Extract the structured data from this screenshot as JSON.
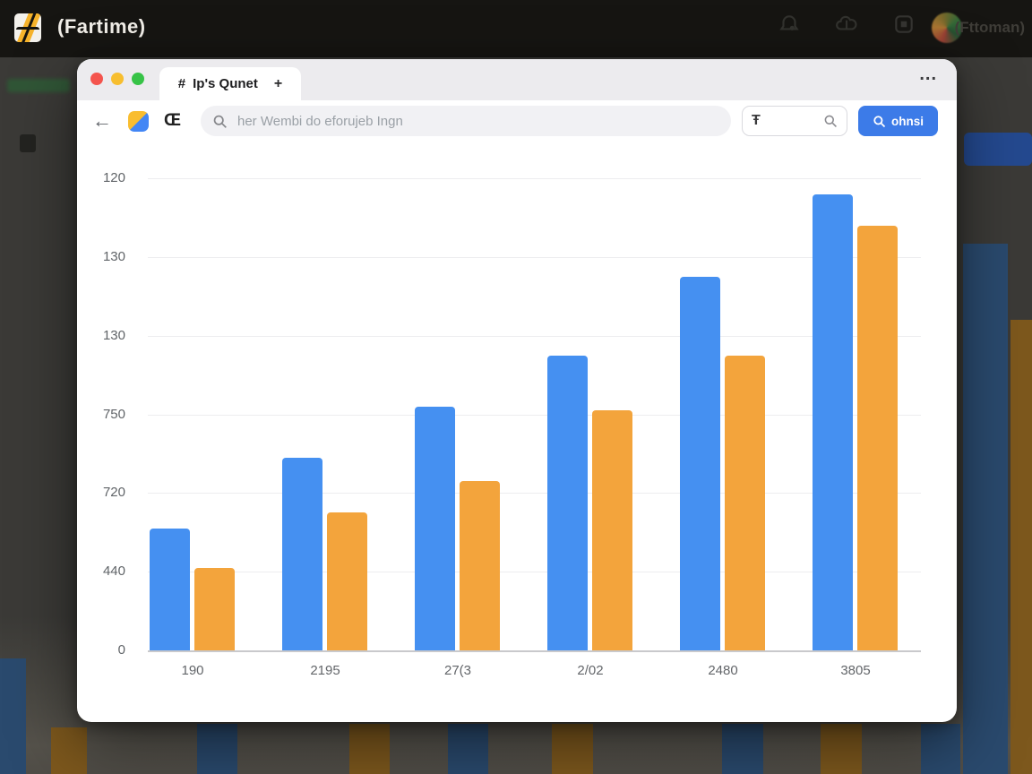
{
  "background": {
    "app_title": "(Fartime)",
    "user_name": "(Fttoman)",
    "topbar_color": "#161512",
    "content_color": "#3b3a37",
    "dim_blue": "#2a4a6e",
    "dim_orange": "#7d581d"
  },
  "window": {
    "tab": {
      "favicon_glyph": "#",
      "title": "Ip's Qunet",
      "new_tab_glyph": "+"
    },
    "menu_glyph": "...",
    "toolbar": {
      "back_glyph": "←",
      "reader_glyph": "Œ",
      "search_placeholder": "her Wembi do eforujeb Ingn",
      "find_glyph": "Ŧ",
      "search_button_label": "ohnsi",
      "accent_color": "#3C7BE8"
    }
  },
  "chart_data": {
    "type": "bar",
    "title": "",
    "xlabel": "",
    "ylabel": "",
    "categories": [
      "190",
      "2195",
      "27(3",
      "2/02",
      "2480",
      "3805"
    ],
    "series": [
      {
        "name": "blue",
        "color": "#4590F1",
        "values": [
          31,
          49,
          62,
          75,
          95,
          116
        ]
      },
      {
        "name": "orange",
        "color": "#F3A43C",
        "values": [
          21,
          35,
          43,
          61,
          75,
          108
        ]
      }
    ],
    "ylim": [
      0,
      120
    ],
    "y_tick_labels_bottom_to_top": [
      "0",
      "440",
      "720",
      "750",
      "130",
      "130",
      "120"
    ],
    "grid": true,
    "legend": "none"
  }
}
